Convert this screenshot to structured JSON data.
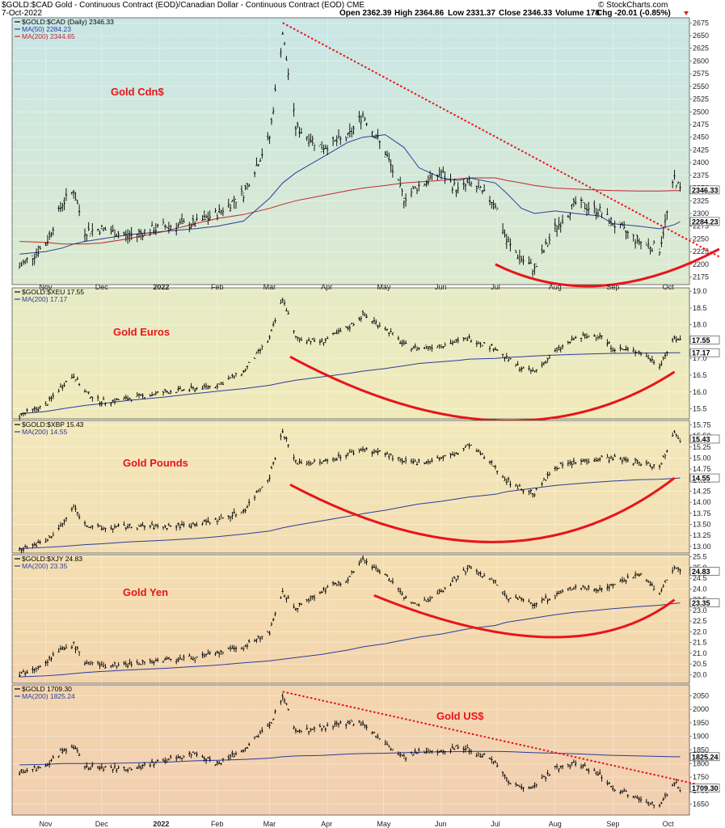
{
  "header": {
    "ticker_line": "$GOLD:$CAD Gold - Continuous Contract (EOD)/Canadian Dollar - Continuous Contract (EOD) CME",
    "date": "7-Oct-2022",
    "open": "Open 2362.39",
    "high": "High 2364.86",
    "low": "Low 2331.37",
    "close": "Close 2346.33",
    "volume": "Volume 178",
    "chg": "Chg -20.01 (-0.85%)",
    "brand": "© StockCharts.com"
  },
  "colors": {
    "price": "#000000",
    "ma50": "#2b3d9a",
    "ma200": "#c0282d",
    "annotation": "#e8141a"
  },
  "x_labels": [
    "Nov",
    "Dec",
    "2022",
    "Feb",
    "Mar",
    "Apr",
    "May",
    "Jun",
    "Jul",
    "Aug",
    "Sep",
    "Oct"
  ],
  "chart_data": [
    {
      "type": "line",
      "name": "gold-cad",
      "title": "Gold Cdn$",
      "legend": [
        "$GOLD:$CAD (Daily) 2346.33",
        "MA(50) 2284.23",
        "MA(200) 2344.65"
      ],
      "last_labels": [
        "2346.33",
        "2284.23"
      ],
      "ylim": [
        2160,
        2685
      ],
      "yticks": [
        "2175",
        "2200",
        "2225",
        "2250",
        "2275",
        "2300",
        "2325",
        "2350",
        "2375",
        "2400",
        "2425",
        "2450",
        "2475",
        "2500",
        "2525",
        "2550",
        "2575",
        "2600",
        "2625",
        "2650",
        "2675"
      ],
      "x": [
        "2021-10-18",
        "2021-11-01",
        "2021-11-10",
        "2021-11-16",
        "2021-11-22",
        "2021-12-01",
        "2021-12-15",
        "2022-01-04",
        "2022-01-20",
        "2022-02-01",
        "2022-02-15",
        "2022-03-01",
        "2022-03-08",
        "2022-03-15",
        "2022-03-29",
        "2022-04-12",
        "2022-04-20",
        "2022-05-02",
        "2022-05-12",
        "2022-05-20",
        "2022-06-01",
        "2022-06-10",
        "2022-06-16",
        "2022-06-30",
        "2022-07-06",
        "2022-07-14",
        "2022-07-21",
        "2022-08-01",
        "2022-08-12",
        "2022-08-25",
        "2022-09-01",
        "2022-09-15",
        "2022-09-26",
        "2022-10-04",
        "2022-10-07"
      ],
      "close": [
        2195,
        2240,
        2320,
        2345,
        2265,
        2270,
        2255,
        2275,
        2280,
        2300,
        2340,
        2450,
        2655,
        2470,
        2430,
        2450,
        2495,
        2420,
        2330,
        2355,
        2380,
        2345,
        2360,
        2320,
        2245,
        2210,
        2190,
        2270,
        2320,
        2305,
        2280,
        2245,
        2230,
        2370,
        2346
      ],
      "ma50": [
        2220,
        2225,
        2232,
        2240,
        2245,
        2250,
        2258,
        2265,
        2270,
        2275,
        2285,
        2330,
        2360,
        2380,
        2410,
        2440,
        2450,
        2455,
        2430,
        2390,
        2370,
        2365,
        2370,
        2360,
        2340,
        2310,
        2300,
        2305,
        2300,
        2295,
        2280,
        2275,
        2270,
        2278,
        2284
      ],
      "ma200": [
        2245,
        2243,
        2240,
        2240,
        2240,
        2242,
        2250,
        2265,
        2280,
        2290,
        2298,
        2310,
        2318,
        2325,
        2335,
        2345,
        2350,
        2355,
        2360,
        2362,
        2365,
        2368,
        2370,
        2370,
        2365,
        2360,
        2355,
        2350,
        2348,
        2346,
        2345,
        2344,
        2344,
        2345,
        2345
      ],
      "trendline": {
        "x": [
          "2022-03-08",
          "2022-10-28"
        ],
        "y": [
          2675,
          2215
        ]
      },
      "arc": {
        "x": [
          "2022-06-30",
          "2022-08-26",
          "2022-10-28"
        ],
        "y": [
          2200,
          2158,
          2230
        ]
      }
    },
    {
      "type": "line",
      "name": "gold-eur",
      "title": "Gold Euros",
      "legend": [
        "$GOLD:$XEU 17.55",
        "MA(200) 17.17"
      ],
      "last_labels": [
        "17.55",
        "17.17"
      ],
      "ylim": [
        15.2,
        19.1
      ],
      "yticks": [
        "15.5",
        "16.0",
        "16.5",
        "17.0",
        "17.5",
        "18.0",
        "18.5",
        "19.0"
      ],
      "x": [
        "2021-10-18",
        "2021-11-01",
        "2021-11-10",
        "2021-11-16",
        "2021-11-22",
        "2021-12-01",
        "2021-12-15",
        "2022-01-04",
        "2022-01-20",
        "2022-02-01",
        "2022-02-15",
        "2022-03-01",
        "2022-03-08",
        "2022-03-15",
        "2022-03-29",
        "2022-04-12",
        "2022-04-20",
        "2022-05-02",
        "2022-05-12",
        "2022-05-20",
        "2022-06-01",
        "2022-06-10",
        "2022-06-16",
        "2022-06-30",
        "2022-07-06",
        "2022-07-14",
        "2022-07-21",
        "2022-08-01",
        "2022-08-12",
        "2022-08-25",
        "2022-09-01",
        "2022-09-15",
        "2022-09-26",
        "2022-10-04",
        "2022-10-07"
      ],
      "close": [
        15.3,
        15.6,
        16.2,
        16.5,
        16.0,
        15.7,
        15.8,
        16.0,
        16.1,
        16.2,
        16.6,
        17.6,
        18.8,
        17.6,
        17.5,
        17.9,
        18.3,
        17.9,
        17.4,
        17.3,
        17.4,
        17.5,
        17.6,
        17.3,
        17.0,
        16.7,
        16.6,
        17.2,
        17.6,
        17.7,
        17.3,
        17.2,
        16.8,
        17.6,
        17.55
      ],
      "ma200": [
        15.35,
        15.42,
        15.5,
        15.55,
        15.6,
        15.65,
        15.75,
        15.85,
        15.95,
        16.02,
        16.1,
        16.2,
        16.28,
        16.35,
        16.45,
        16.55,
        16.62,
        16.7,
        16.78,
        16.85,
        16.9,
        16.94,
        16.98,
        17.0,
        17.03,
        17.05,
        17.07,
        17.1,
        17.12,
        17.14,
        17.15,
        17.16,
        17.16,
        17.17,
        17.17
      ],
      "arc": {
        "x": [
          "2022-03-12",
          "2022-07-01",
          "2022-10-04"
        ],
        "y": [
          17.05,
          15.15,
          16.6
        ]
      }
    },
    {
      "type": "line",
      "name": "gold-gbp",
      "title": "Gold Pounds",
      "legend": [
        "$GOLD:$XBP 15.43",
        "MA(200) 14.55"
      ],
      "last_labels": [
        "15.43",
        "14.55"
      ],
      "ylim": [
        12.85,
        15.85
      ],
      "yticks": [
        "13.00",
        "13.25",
        "13.50",
        "13.75",
        "14.00",
        "14.25",
        "14.50",
        "14.75",
        "15.00",
        "15.25",
        "15.50",
        "15.75"
      ],
      "x": [
        "2021-10-18",
        "2021-11-01",
        "2021-11-10",
        "2021-11-16",
        "2021-11-22",
        "2021-12-01",
        "2021-12-15",
        "2022-01-04",
        "2022-01-20",
        "2022-02-01",
        "2022-02-15",
        "2022-03-01",
        "2022-03-08",
        "2022-03-15",
        "2022-03-29",
        "2022-04-12",
        "2022-04-20",
        "2022-05-02",
        "2022-05-12",
        "2022-05-20",
        "2022-06-01",
        "2022-06-10",
        "2022-06-16",
        "2022-06-30",
        "2022-07-06",
        "2022-07-14",
        "2022-07-21",
        "2022-08-01",
        "2022-08-12",
        "2022-08-25",
        "2022-09-01",
        "2022-09-15",
        "2022-09-26",
        "2022-10-04",
        "2022-10-07"
      ],
      "close": [
        12.95,
        13.1,
        13.5,
        13.9,
        13.5,
        13.4,
        13.45,
        13.45,
        13.5,
        13.6,
        13.8,
        14.6,
        15.6,
        14.9,
        14.9,
        15.1,
        15.2,
        15.1,
        14.9,
        14.9,
        15.0,
        15.1,
        15.3,
        14.8,
        14.5,
        14.3,
        14.2,
        14.8,
        14.9,
        15.0,
        15.0,
        14.9,
        14.8,
        15.6,
        15.43
      ],
      "ma200": [
        12.95,
        12.98,
        13.0,
        13.02,
        13.04,
        13.06,
        13.1,
        13.14,
        13.18,
        13.22,
        13.28,
        13.35,
        13.42,
        13.48,
        13.58,
        13.68,
        13.74,
        13.82,
        13.9,
        13.96,
        14.02,
        14.08,
        14.12,
        14.18,
        14.24,
        14.28,
        14.32,
        14.38,
        14.42,
        14.46,
        14.48,
        14.51,
        14.52,
        14.54,
        14.55
      ],
      "arc": {
        "x": [
          "2022-03-12",
          "2022-07-01",
          "2022-10-04"
        ],
        "y": [
          14.4,
          13.1,
          14.55
        ]
      }
    },
    {
      "type": "line",
      "name": "gold-jpy",
      "title": "Gold Yen",
      "legend": [
        "$GOLD:$XJY 24.83",
        "MA(200) 23.35"
      ],
      "last_labels": [
        "24.83",
        "23.35"
      ],
      "ylim": [
        19.6,
        25.6
      ],
      "yticks": [
        "20.0",
        "20.5",
        "21.0",
        "21.5",
        "22.0",
        "22.5",
        "23.0",
        "23.5",
        "24.0",
        "24.5",
        "25.0",
        "25.5"
      ],
      "x": [
        "2021-10-18",
        "2021-11-01",
        "2021-11-10",
        "2021-11-16",
        "2021-11-22",
        "2021-12-01",
        "2021-12-15",
        "2022-01-04",
        "2022-01-20",
        "2022-02-01",
        "2022-02-15",
        "2022-03-01",
        "2022-03-08",
        "2022-03-15",
        "2022-03-29",
        "2022-04-12",
        "2022-04-20",
        "2022-05-02",
        "2022-05-12",
        "2022-05-20",
        "2022-06-01",
        "2022-06-10",
        "2022-06-16",
        "2022-06-30",
        "2022-07-06",
        "2022-07-14",
        "2022-07-21",
        "2022-08-01",
        "2022-08-12",
        "2022-08-25",
        "2022-09-01",
        "2022-09-15",
        "2022-09-26",
        "2022-10-04",
        "2022-10-07"
      ],
      "close": [
        20.0,
        20.6,
        21.2,
        21.4,
        20.6,
        20.4,
        20.5,
        20.7,
        20.8,
        21.0,
        21.3,
        22.0,
        23.8,
        23.1,
        23.9,
        24.5,
        25.4,
        24.7,
        23.6,
        23.3,
        23.9,
        24.6,
        25.0,
        24.3,
        23.6,
        23.5,
        23.3,
        23.7,
        24.1,
        24.0,
        24.2,
        24.7,
        23.8,
        25.0,
        24.83
      ],
      "ma200": [
        19.9,
        19.95,
        20.0,
        20.05,
        20.1,
        20.15,
        20.22,
        20.3,
        20.38,
        20.45,
        20.55,
        20.65,
        20.72,
        20.8,
        20.95,
        21.15,
        21.3,
        21.45,
        21.62,
        21.75,
        21.9,
        22.05,
        22.15,
        22.3,
        22.45,
        22.55,
        22.65,
        22.8,
        22.92,
        23.02,
        23.08,
        23.18,
        23.24,
        23.32,
        23.35
      ],
      "arc": {
        "x": [
          "2022-04-26",
          "2022-07-29",
          "2022-10-04"
        ],
        "y": [
          23.7,
          21.75,
          23.5
        ]
      }
    },
    {
      "type": "line",
      "name": "gold-usd",
      "title": "Gold US$",
      "legend": [
        "$GOLD 1709.30",
        "MA(200) 1825.24"
      ],
      "last_labels": [
        "1825.24",
        "1709.30"
      ],
      "ylim": [
        1610,
        2090
      ],
      "yticks": [
        "1650",
        "1700",
        "1750",
        "1800",
        "1850",
        "1900",
        "1950",
        "2000",
        "2050"
      ],
      "x": [
        "2021-10-18",
        "2021-11-01",
        "2021-11-10",
        "2021-11-16",
        "2021-11-22",
        "2021-12-01",
        "2021-12-15",
        "2022-01-04",
        "2022-01-20",
        "2022-02-01",
        "2022-02-15",
        "2022-03-01",
        "2022-03-08",
        "2022-03-15",
        "2022-03-29",
        "2022-04-12",
        "2022-04-20",
        "2022-05-02",
        "2022-05-12",
        "2022-05-20",
        "2022-06-01",
        "2022-06-10",
        "2022-06-16",
        "2022-06-30",
        "2022-07-06",
        "2022-07-14",
        "2022-07-21",
        "2022-08-01",
        "2022-08-12",
        "2022-08-25",
        "2022-09-01",
        "2022-09-15",
        "2022-09-26",
        "2022-10-04",
        "2022-10-07"
      ],
      "close": [
        1770,
        1790,
        1850,
        1865,
        1790,
        1785,
        1780,
        1810,
        1840,
        1800,
        1850,
        1940,
        2050,
        1920,
        1930,
        1950,
        1950,
        1870,
        1820,
        1840,
        1850,
        1860,
        1850,
        1810,
        1740,
        1710,
        1720,
        1780,
        1800,
        1760,
        1710,
        1675,
        1640,
        1730,
        1709
      ],
      "ma200": [
        1795,
        1797,
        1800,
        1800,
        1800,
        1800,
        1802,
        1805,
        1810,
        1812,
        1815,
        1820,
        1825,
        1828,
        1830,
        1835,
        1837,
        1838,
        1840,
        1842,
        1843,
        1844,
        1845,
        1845,
        1844,
        1842,
        1840,
        1838,
        1836,
        1832,
        1830,
        1828,
        1826,
        1825,
        1825
      ],
      "trendline": {
        "x": [
          "2022-03-08",
          "2022-10-15"
        ],
        "y": [
          2065,
          1725
        ]
      }
    }
  ]
}
